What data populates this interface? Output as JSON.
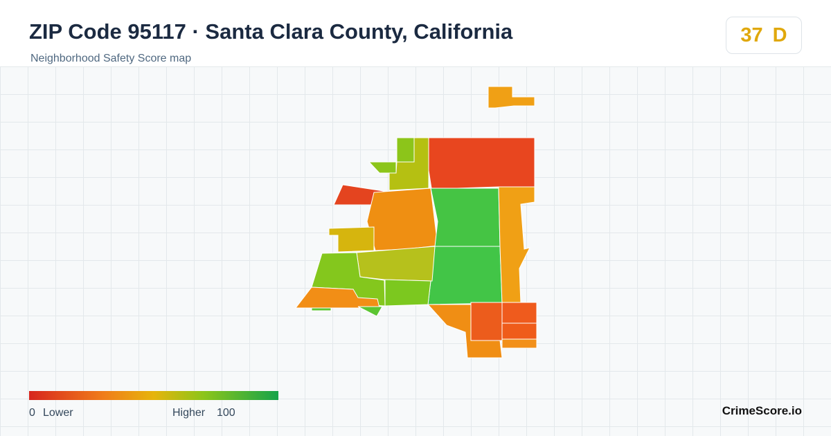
{
  "header": {
    "title": "ZIP Code 95117 · Santa Clara County, California",
    "subtitle": "Neighborhood Safety Score map"
  },
  "score": {
    "value": "37",
    "grade": "D"
  },
  "legend": {
    "min": "0",
    "min_text": "Lower",
    "max_text": "Higher",
    "max": "100"
  },
  "brand": "CrimeScore.io"
}
